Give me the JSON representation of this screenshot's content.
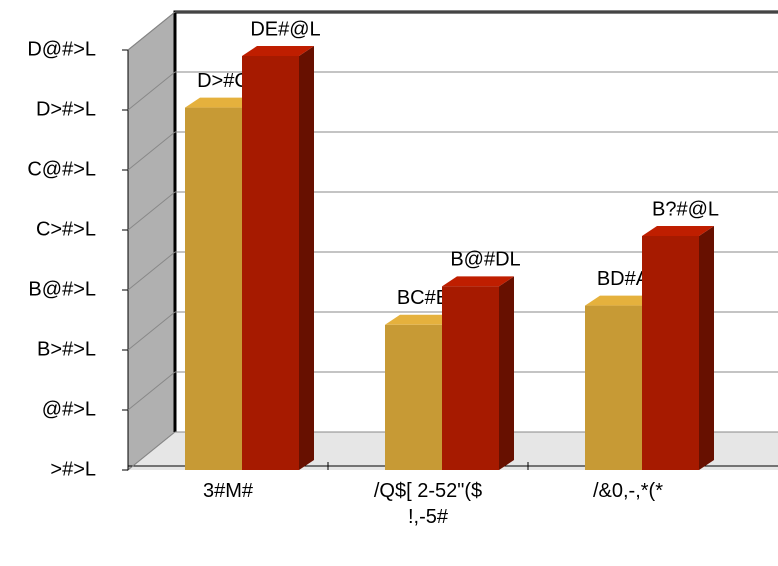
{
  "chart_data": {
    "type": "bar3d",
    "categories": [
      "3#M#",
      "/Q$[ 2-52\"($\n!,-5#",
      "/&0,-,*(*"
    ],
    "series": [
      {
        "color": "#c79a35",
        "values": [
          30.2,
          12.1,
          13.7
        ],
        "value_labels": [
          "D>#CL",
          "BC#BL",
          "BD#AL"
        ]
      },
      {
        "color": "#a61a00",
        "values": [
          34.5,
          15.3,
          19.5
        ],
        "value_labels": [
          "DE#@L",
          "B@#DL",
          "B?#@L"
        ]
      }
    ],
    "ylim": [
      0,
      35
    ],
    "yticks": [
      {
        "value": 0,
        "label": ">#>L"
      },
      {
        "value": 5,
        "label": "@#>L"
      },
      {
        "value": 10,
        "label": "B>#>L"
      },
      {
        "value": 15,
        "label": "B@#>L"
      },
      {
        "value": 20,
        "label": "C>#>L"
      },
      {
        "value": 25,
        "label": "C@#>L"
      },
      {
        "value": 30,
        "label": "D>#>L"
      },
      {
        "value": 35,
        "label": "D@#>L"
      }
    ],
    "grid": true
  }
}
